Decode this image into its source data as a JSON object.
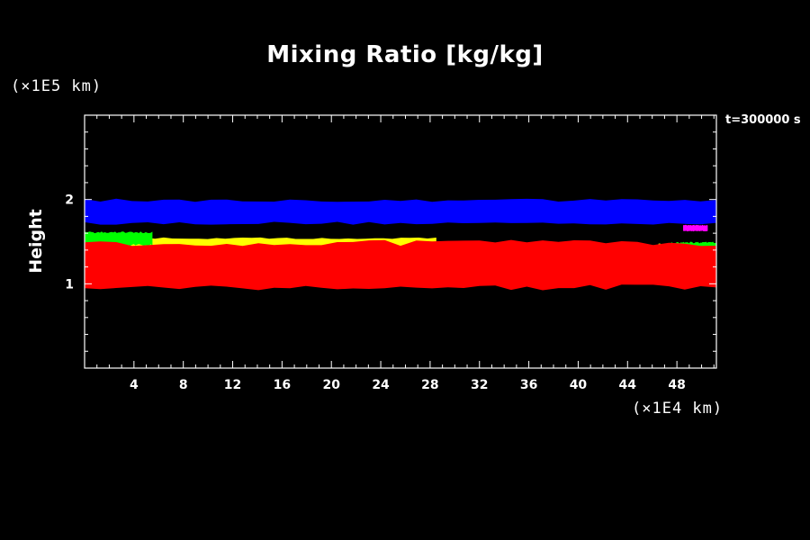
{
  "chart_data": {
    "type": "heatmap",
    "title": "Mixing Ratio [kg/kg]",
    "ylabel": "Height",
    "y_unit": "(×1E5 km)",
    "x_unit": "(×1E4 km)",
    "time_label": "t=300000 s",
    "xlim": [
      0,
      51.2
    ],
    "ylim": [
      0,
      3.0
    ],
    "x_ticks": [
      "4",
      "8",
      "12",
      "16",
      "20",
      "24",
      "28",
      "32",
      "36",
      "40",
      "44",
      "48"
    ],
    "y_ticks": [
      "1",
      "2"
    ],
    "grid": false,
    "colors": {
      "background": "#000000",
      "blue": "#0000ff",
      "yellow": "#ffff00",
      "green": "#00ff00",
      "red": "#ff0000",
      "magenta": "#ff00ff"
    },
    "layers": [
      {
        "color": "blue",
        "x_range": [
          0,
          51.2
        ],
        "y_range": [
          1.7,
          2.01
        ]
      },
      {
        "color": "yellow",
        "x_range": [
          0,
          28.5
        ],
        "y_range": [
          1.38,
          1.55
        ]
      },
      {
        "color": "yellow",
        "x_range": [
          46.5,
          51.2
        ],
        "y_range": [
          1.35,
          1.48
        ]
      },
      {
        "color": "green",
        "x_range": [
          0,
          5.5
        ],
        "y_range": [
          1.45,
          1.62
        ]
      },
      {
        "color": "green",
        "x_range": [
          47.5,
          51.2
        ],
        "y_range": [
          1.32,
          1.5
        ]
      },
      {
        "color": "red",
        "x_range": [
          0,
          51.2
        ],
        "y_range": [
          0.92,
          1.52
        ]
      },
      {
        "color": "magenta",
        "x_range": [
          48.5,
          50.5
        ],
        "y_range": [
          1.62,
          1.7
        ]
      }
    ]
  }
}
